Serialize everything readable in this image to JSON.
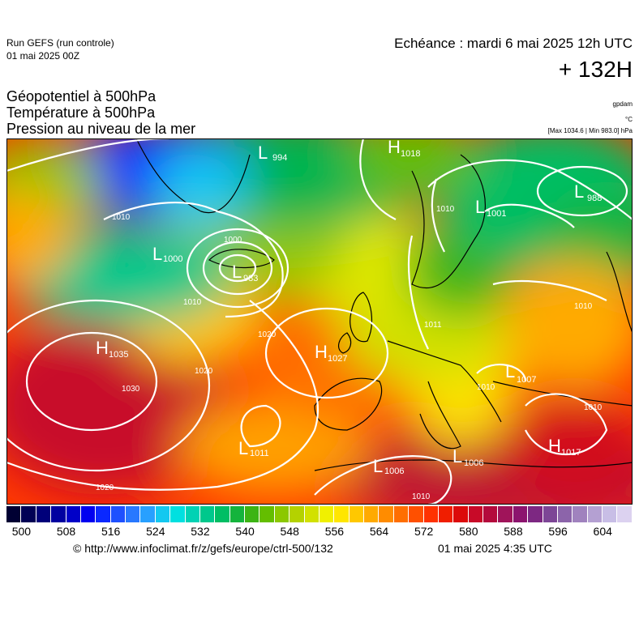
{
  "header": {
    "run_line1": "Run GEFS (run controle)",
    "run_line2": "01 mai 2025 00Z",
    "echeance": "Echéance : mardi 6 mai 2025 12h UTC",
    "lead_time": "+ 132H"
  },
  "parameters": [
    "Géopotentiel à 500hPa",
    "Température à 500hPa",
    "Pression au niveau de la mer"
  ],
  "units": {
    "geopotential": "gpdam",
    "temperature": "°C",
    "pressure": "[Max 1034.6 | Min 983.0] hPa"
  },
  "pressure_centers": [
    {
      "type": "H",
      "value": "1035"
    },
    {
      "type": "H",
      "value": "1027"
    },
    {
      "type": "H",
      "value": "1018"
    },
    {
      "type": "H",
      "value": "1017"
    },
    {
      "type": "L",
      "value": "983"
    },
    {
      "type": "L",
      "value": "994"
    },
    {
      "type": "L",
      "value": "1000"
    },
    {
      "type": "L",
      "value": "1011"
    },
    {
      "type": "L",
      "value": "1006"
    },
    {
      "type": "L",
      "value": "1006"
    },
    {
      "type": "L",
      "value": "1007"
    },
    {
      "type": "L",
      "value": "1001"
    },
    {
      "type": "L",
      "value": "988"
    }
  ],
  "isobar_labels": [
    "1030",
    "1020",
    "1020",
    "1020",
    "1010",
    "1010",
    "1010",
    "1010",
    "1010",
    "1000",
    "1010",
    "1010",
    "1011"
  ],
  "colorbar": {
    "colors": [
      "#000033",
      "#000055",
      "#00007a",
      "#0000a0",
      "#0000c8",
      "#0000f0",
      "#0a28ff",
      "#1e50ff",
      "#2878ff",
      "#28a0ff",
      "#14c8f0",
      "#00e0e0",
      "#00d2b4",
      "#00c88c",
      "#00be64",
      "#14b43c",
      "#3cb414",
      "#64be00",
      "#8cc800",
      "#b4d200",
      "#d2e100",
      "#f0f000",
      "#ffe600",
      "#ffc800",
      "#ffaa00",
      "#ff8c00",
      "#ff6e00",
      "#ff5000",
      "#ff3200",
      "#f01e00",
      "#dc0a0a",
      "#c80a28",
      "#b40a3c",
      "#a0145a",
      "#8c146e",
      "#7d2882",
      "#7d4696",
      "#8c64aa",
      "#a082be",
      "#b4a0d2",
      "#c8bee6",
      "#dcd2f0"
    ],
    "tick_labels": [
      "500",
      "508",
      "516",
      "524",
      "532",
      "540",
      "548",
      "556",
      "564",
      "572",
      "580",
      "588",
      "596",
      "604"
    ]
  },
  "footer": {
    "url": "© http://www.infoclimat.fr/z/gefs/europe/ctrl-500/132",
    "timestamp": "01 mai 2025  4:35 UTC"
  }
}
